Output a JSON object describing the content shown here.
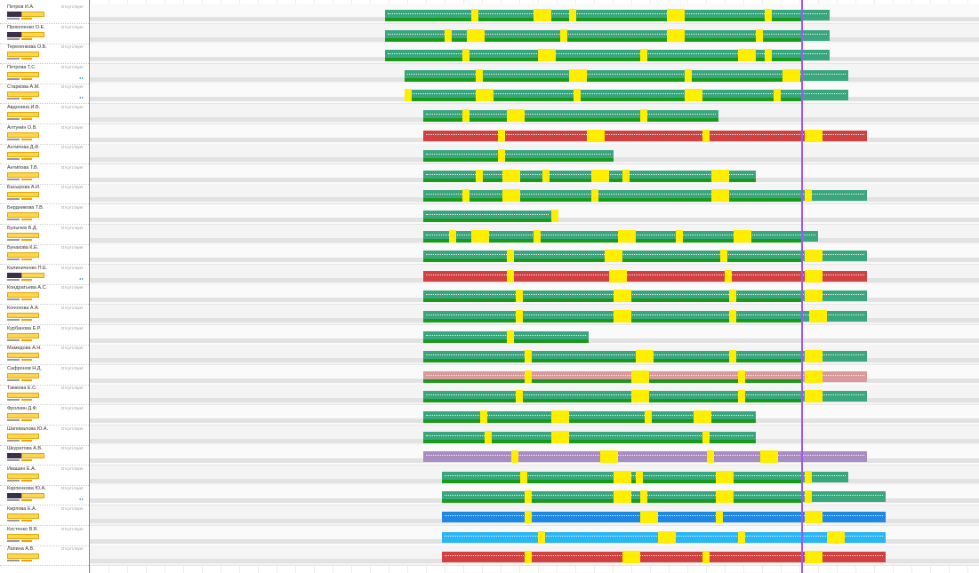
{
  "status_label": "Отсутствует",
  "now_line": "current-time",
  "colors": {
    "teal": "#3aa67e",
    "red": "#d14141",
    "blue": "#1e88e5",
    "cyan": "#29b6f6",
    "pink": "#d89a9a",
    "purple": "#a98cc0",
    "yellow": "#ffee00",
    "green": "#1a9a1a",
    "now": "#9b59ff"
  },
  "employees": [
    {
      "name": "Петров И.А.",
      "status": "Отсутствует"
    },
    {
      "name": "Прокопенко О.Е.",
      "status": "Отсутствует"
    },
    {
      "name": "Терехенкова О.Б.",
      "status": "Отсутствует"
    },
    {
      "name": "Петрова Т.С.",
      "status": "Отсутствует"
    },
    {
      "name": "Старкова А.М.",
      "status": "Отсутствует"
    },
    {
      "name": "Авдонина И.В.",
      "status": "Отсутствует"
    },
    {
      "name": "Алтунин О.В.",
      "status": "Отсутствует"
    },
    {
      "name": "Антипова Д.Ф.",
      "status": "Отсутствует"
    },
    {
      "name": "Антипова Т.В.",
      "status": "Отсутствует"
    },
    {
      "name": "Басырова А.И.",
      "status": "Отсутствует"
    },
    {
      "name": "Бердникова Т.В.",
      "status": "Отсутствует"
    },
    {
      "name": "Булычев В.Д.",
      "status": "Отсутствует"
    },
    {
      "name": "Бунакова К.Е.",
      "status": "Отсутствует"
    },
    {
      "name": "Калиниченко П.Е.",
      "status": "Отсутствует"
    },
    {
      "name": "Кондратьева А.С.",
      "status": "Отсутствует"
    },
    {
      "name": "Кононова А.А.",
      "status": "Отсутствует"
    },
    {
      "name": "Курбанова Е.Р.",
      "status": "Отсутствует"
    },
    {
      "name": "Мамедова А.Н.",
      "status": "Отсутствует"
    },
    {
      "name": "Сафронов Н.Д.",
      "status": "Отсутствует"
    },
    {
      "name": "Тамкова Е.С.",
      "status": "Отсутствует"
    },
    {
      "name": "Фролкин Д.Ф.",
      "status": "Отсутствует"
    },
    {
      "name": "Шаповалова Ю.А.",
      "status": "Отсутствует"
    },
    {
      "name": "Шкуратова А.В.",
      "status": "Отсутствует"
    },
    {
      "name": "Ивашин Е.А.",
      "status": "Отсутствует"
    },
    {
      "name": "Карпенкова Ю.А.",
      "status": "Отсутствует"
    },
    {
      "name": "Кирпова Е.А.",
      "status": "Отсутствует"
    },
    {
      "name": "Костенко В.В.",
      "status": "Отсутствует"
    },
    {
      "name": "Лапина А.В.",
      "status": "Отсутствует"
    }
  ]
}
